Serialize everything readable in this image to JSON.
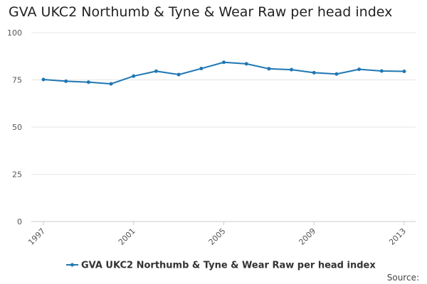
{
  "chart_data": {
    "type": "line",
    "title": "GVA UKC2 Northumb & Tyne & Wear Raw per head index",
    "xlabel": "",
    "ylabel": "",
    "x": [
      1997,
      1998,
      1999,
      2000,
      2001,
      2002,
      2003,
      2004,
      2005,
      2006,
      2007,
      2008,
      2009,
      2010,
      2011,
      2012,
      2013
    ],
    "x_tick_labels": [
      "1997",
      "2001",
      "2005",
      "2009",
      "2013"
    ],
    "y_ticks": [
      "0",
      "25",
      "50",
      "75",
      "100"
    ],
    "ylim": [
      0,
      100
    ],
    "grid": true,
    "legend_position": "bottom",
    "series": [
      {
        "name": "GVA UKC2 Northumb & Tyne & Wear Raw per head index",
        "color": "#1f77b4",
        "values": [
          75.2,
          74.3,
          73.8,
          72.9,
          77.0,
          79.6,
          77.8,
          81.0,
          84.3,
          83.5,
          80.9,
          80.4,
          78.8,
          78.1,
          80.6,
          79.7,
          79.5
        ]
      }
    ]
  },
  "footer": {
    "source_label": "Source:"
  }
}
